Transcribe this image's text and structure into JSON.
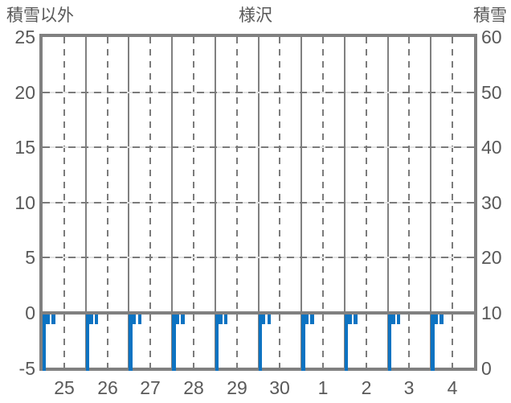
{
  "chart_data": {
    "type": "bar",
    "title": "様沢",
    "left_axis": {
      "label": "積雪以外",
      "range": [
        -5,
        25
      ],
      "ticks": [
        25,
        20,
        15,
        10,
        5,
        0,
        -5
      ]
    },
    "right_axis": {
      "label": "積雪",
      "range": [
        0,
        60
      ],
      "ticks": [
        60,
        50,
        40,
        30,
        20,
        10,
        0
      ]
    },
    "x_days": [
      "25",
      "26",
      "27",
      "28",
      "29",
      "30",
      "1",
      "2",
      "3",
      "4"
    ],
    "hours_per_day": 24,
    "grid": {
      "solid_vertical": "day boundaries",
      "dashed_vertical": "half-day (12h) positions",
      "dashed_horizontal_at": [
        20,
        15,
        10,
        5
      ],
      "zero_line": "solid thick at left-axis 0"
    },
    "bar_color": "#0d73c2",
    "clip_min": -5,
    "series": [
      {
        "name": "hourly-bars-below-zero",
        "days": [
          {
            "day": "25",
            "segments": [
              {
                "start_hour": 0,
                "span_hours": 4,
                "value": -1
              },
              {
                "start_hour": 0,
                "span_hours": 2,
                "value": "below-min"
              },
              {
                "start_hour": 5,
                "span_hours": 2,
                "value": -1
              }
            ]
          },
          {
            "day": "26",
            "segments": [
              {
                "start_hour": 0,
                "span_hours": 4,
                "value": -1
              },
              {
                "start_hour": 0,
                "span_hours": 2,
                "value": "below-min"
              },
              {
                "start_hour": 5,
                "span_hours": 2,
                "value": -1
              }
            ]
          },
          {
            "day": "27",
            "segments": [
              {
                "start_hour": 0,
                "span_hours": 4,
                "value": -1
              },
              {
                "start_hour": 0,
                "span_hours": 2,
                "value": "below-min"
              },
              {
                "start_hour": 5,
                "span_hours": 2,
                "value": -1
              }
            ]
          },
          {
            "day": "28",
            "segments": [
              {
                "start_hour": 0,
                "span_hours": 4,
                "value": -1
              },
              {
                "start_hour": 0,
                "span_hours": 2,
                "value": "below-min"
              },
              {
                "start_hour": 5,
                "span_hours": 2,
                "value": -1
              }
            ]
          },
          {
            "day": "29",
            "segments": [
              {
                "start_hour": 0,
                "span_hours": 4,
                "value": -1
              },
              {
                "start_hour": 0,
                "span_hours": 2,
                "value": "below-min"
              },
              {
                "start_hour": 5,
                "span_hours": 2,
                "value": -1
              }
            ]
          },
          {
            "day": "30",
            "segments": [
              {
                "start_hour": 0,
                "span_hours": 4,
                "value": -1
              },
              {
                "start_hour": 0,
                "span_hours": 2,
                "value": "below-min"
              },
              {
                "start_hour": 5,
                "span_hours": 2,
                "value": -1
              }
            ]
          },
          {
            "day": "1",
            "segments": [
              {
                "start_hour": 0,
                "span_hours": 4,
                "value": -1
              },
              {
                "start_hour": 0,
                "span_hours": 2,
                "value": "below-min"
              },
              {
                "start_hour": 5,
                "span_hours": 2,
                "value": -1
              }
            ]
          },
          {
            "day": "2",
            "segments": [
              {
                "start_hour": 0,
                "span_hours": 4,
                "value": -1
              },
              {
                "start_hour": 0,
                "span_hours": 2,
                "value": "below-min"
              },
              {
                "start_hour": 5,
                "span_hours": 2,
                "value": -1
              }
            ]
          },
          {
            "day": "3",
            "segments": [
              {
                "start_hour": 0,
                "span_hours": 4,
                "value": -1
              },
              {
                "start_hour": 0,
                "span_hours": 2,
                "value": "below-min"
              },
              {
                "start_hour": 5,
                "span_hours": 2,
                "value": -1
              }
            ]
          },
          {
            "day": "4",
            "segments": [
              {
                "start_hour": 0,
                "span_hours": 4,
                "value": -1
              },
              {
                "start_hour": 0,
                "span_hours": 2,
                "value": "below-min"
              },
              {
                "start_hour": 5,
                "span_hours": 2,
                "value": -1
              }
            ]
          }
        ]
      }
    ],
    "colors": {
      "frame": "#808080",
      "grid_dash": "#7b7b7b",
      "grid_underlay": "#e2e2e2",
      "bar": "#0d73c2",
      "text": "#595959",
      "background": "#ffffff"
    }
  }
}
